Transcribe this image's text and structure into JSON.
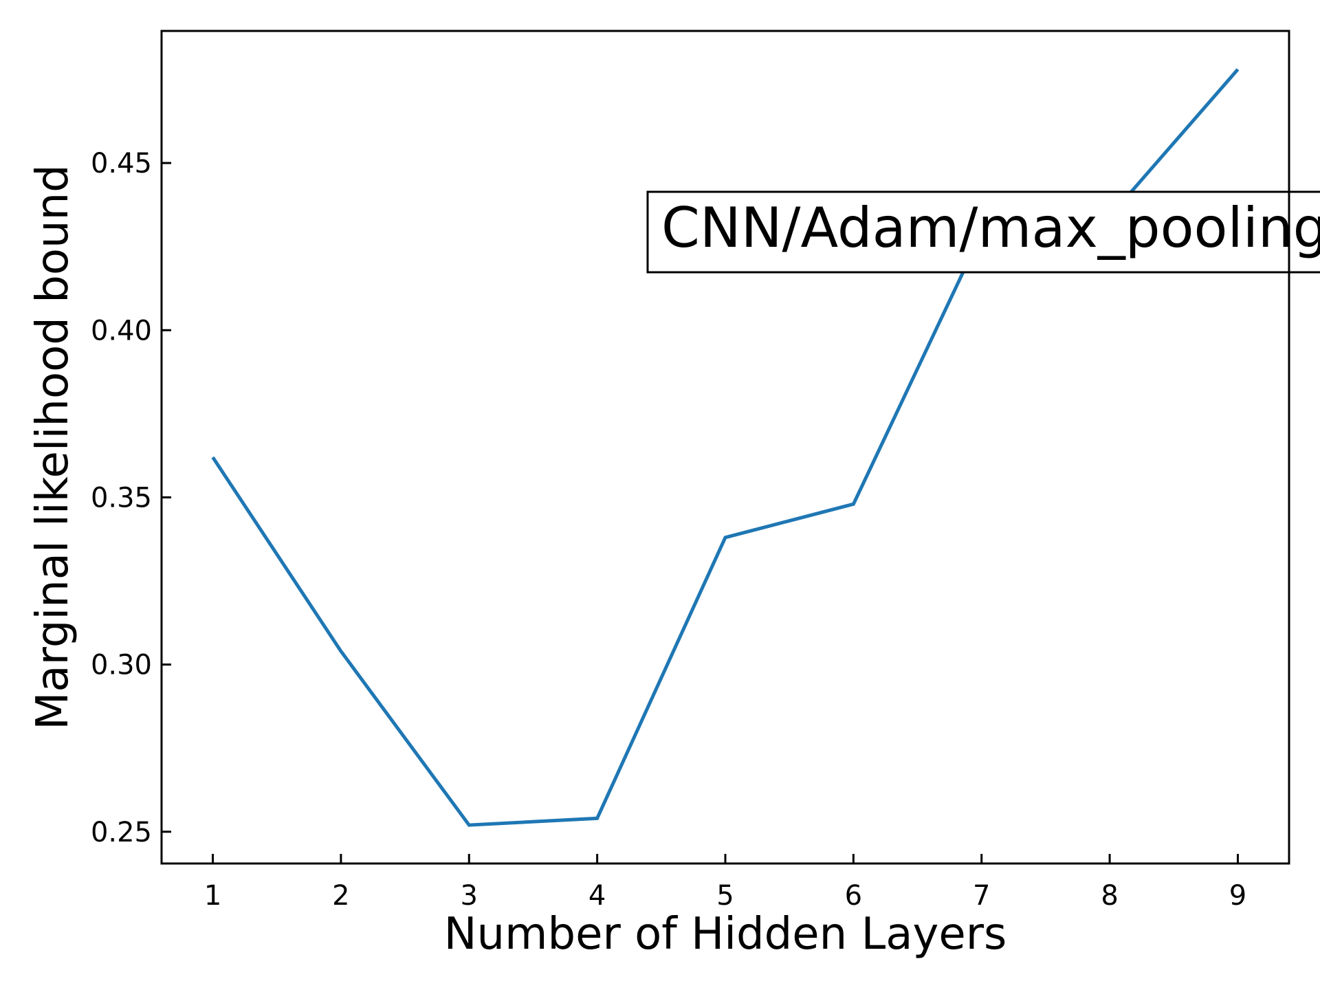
{
  "chart_data": {
    "type": "line",
    "title": "",
    "xlabel": "Number of Hidden Layers",
    "ylabel": "Marginal likelihood bound",
    "x": [
      1,
      2,
      3,
      4,
      5,
      6,
      7,
      8,
      9
    ],
    "x_tick_labels": [
      "1",
      "2",
      "3",
      "4",
      "5",
      "6",
      "7",
      "8",
      "9"
    ],
    "y_ticks": [
      0.25,
      0.3,
      0.35,
      0.4,
      0.45
    ],
    "y_tick_labels": [
      "0.25",
      "0.30",
      "0.35",
      "0.40",
      "0.45"
    ],
    "xlim": [
      0.6,
      9.4
    ],
    "ylim": [
      0.2405,
      0.4895
    ],
    "grid": false,
    "annotation": "CNN/Adam/max_pooling",
    "series": [
      {
        "color": "#1f77b4",
        "values": [
          0.362,
          0.304,
          0.252,
          0.254,
          0.338,
          0.348,
          0.429,
          0.434,
          0.478
        ]
      }
    ]
  }
}
